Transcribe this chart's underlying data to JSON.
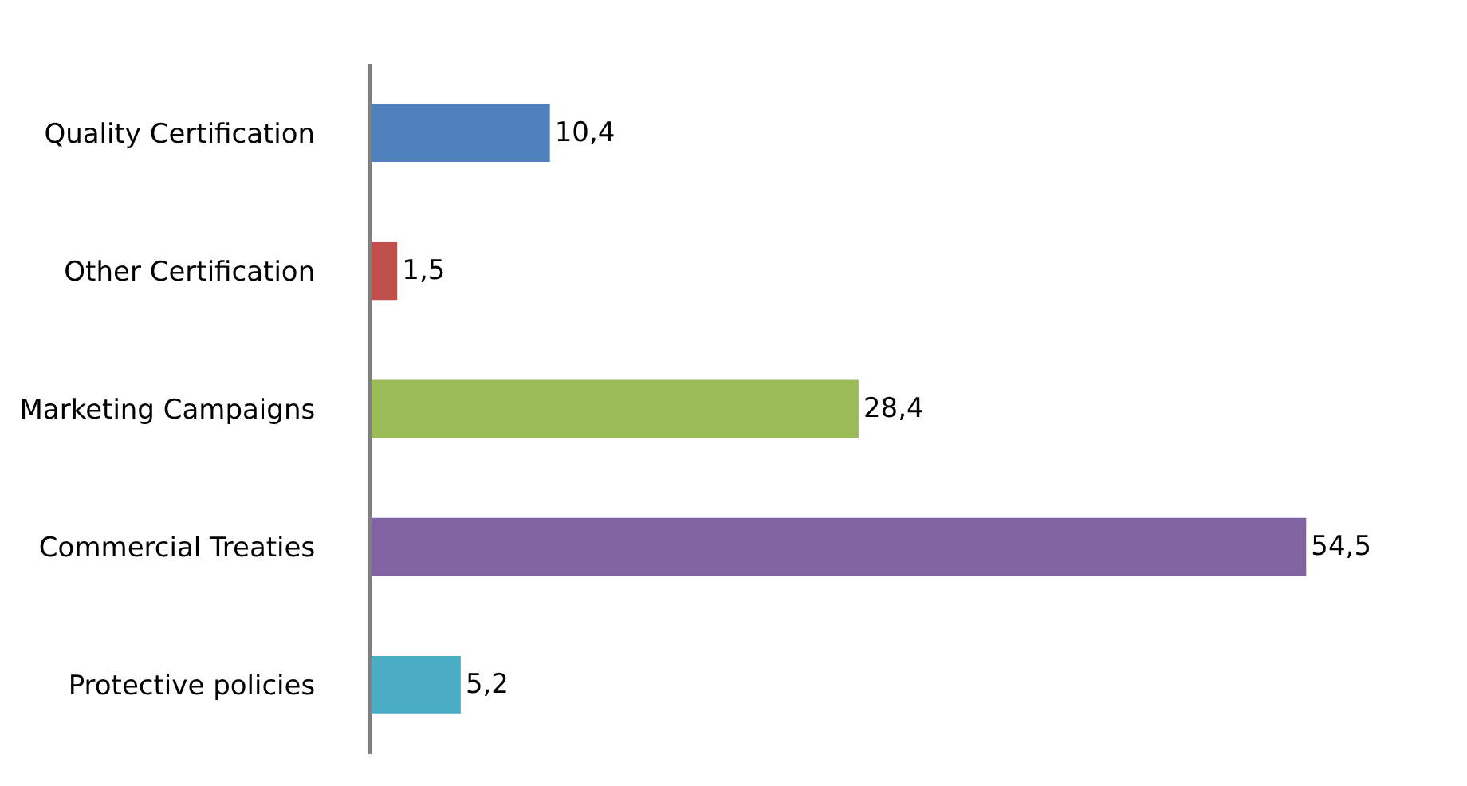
{
  "chart_data": {
    "type": "bar",
    "orientation": "horizontal",
    "categories": [
      "Quality Certification",
      "Other Certification",
      "Marketing Campaigns",
      "Commercial Treaties",
      "Protective policies"
    ],
    "values": [
      10.4,
      1.5,
      28.4,
      54.5,
      5.2
    ],
    "value_labels": [
      "10,4",
      "1,5",
      "28,4",
      "54,5",
      "5,2"
    ],
    "colors": [
      "#4f81bd",
      "#c0504d",
      "#9bbb59",
      "#8064a2",
      "#4bacc6"
    ]
  }
}
